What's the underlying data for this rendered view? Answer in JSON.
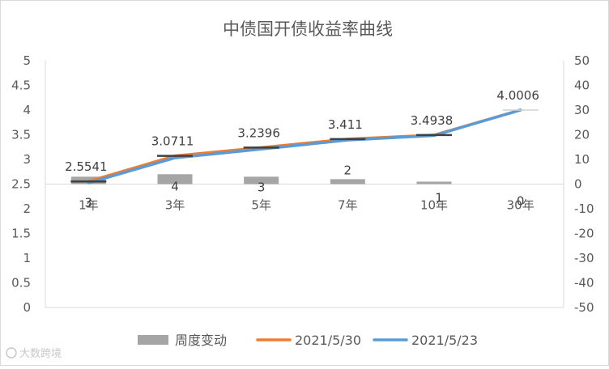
{
  "watermark": "大数跨境",
  "chart_data": {
    "type": "bar+line",
    "title": "中债国开债收益率曲线",
    "categories": [
      "1年",
      "3年",
      "5年",
      "7年",
      "10年",
      "30年"
    ],
    "y_left": {
      "ylim": [
        0,
        5
      ],
      "ticks": [
        "0",
        "0.5",
        "1",
        "1.5",
        "2",
        "2.5",
        "3",
        "3.5",
        "4",
        "4.5",
        "5"
      ]
    },
    "y_right": {
      "ylim": [
        -50,
        50
      ],
      "ticks": [
        "-50",
        "-40",
        "-30",
        "-20",
        "-10",
        "0",
        "10",
        "20",
        "30",
        "40",
        "50"
      ]
    },
    "series": [
      {
        "name": "周度变动",
        "type": "bar",
        "axis": "right",
        "color": "#a5a5a5",
        "values": [
          3,
          4,
          3,
          2,
          1,
          0
        ],
        "labels": [
          "3",
          "4",
          "3",
          "2",
          "1",
          "0"
        ]
      },
      {
        "name": "2021/5/30",
        "type": "line",
        "axis": "left",
        "color": "#ed7d31",
        "values": [
          2.5541,
          3.0711,
          3.2396,
          3.411,
          3.4938,
          4.0006
        ],
        "labels": [
          "2.5541",
          "3.0711",
          "3.2396",
          "3.411",
          "3.4938",
          "4.0006"
        ]
      },
      {
        "name": "2021/5/23",
        "type": "line",
        "axis": "left",
        "color": "#5b9bd5",
        "values": [
          2.5241,
          3.0311,
          3.2096,
          3.391,
          3.4838,
          4.0006
        ]
      }
    ],
    "legend": "bottom",
    "grid": false
  }
}
